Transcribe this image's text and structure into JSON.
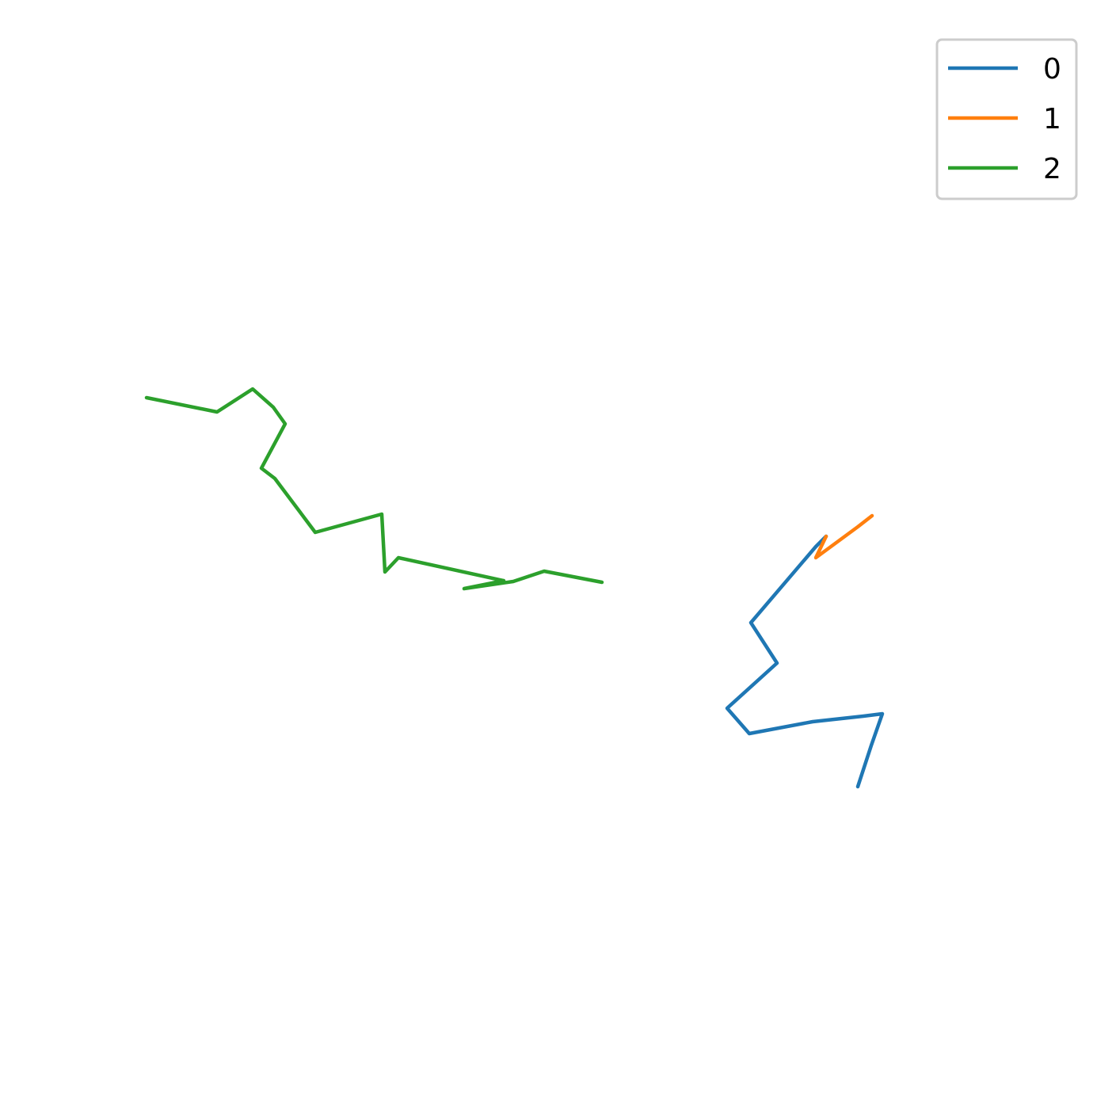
{
  "chart_data": {
    "type": "line",
    "title": "",
    "xlabel": "",
    "ylabel": "",
    "axes_visible": false,
    "grid": false,
    "legend": {
      "position": "top-right",
      "entries": [
        "0",
        "1",
        "2"
      ]
    },
    "series": [
      {
        "name": "0",
        "color": "#1f77b4",
        "points": [
          [
            1043,
            677
          ],
          [
            1030,
            690
          ],
          [
            948,
            786
          ],
          [
            981,
            837
          ],
          [
            918,
            894
          ],
          [
            946,
            926
          ],
          [
            1026,
            911
          ],
          [
            1090,
            904
          ],
          [
            1114,
            901
          ],
          [
            1100,
            941
          ],
          [
            1083,
            993
          ]
        ]
      },
      {
        "name": "1",
        "color": "#ff7f0e",
        "points": [
          [
            1101,
            651
          ],
          [
            1083,
            665
          ],
          [
            1030,
            704
          ],
          [
            1043,
            677
          ]
        ]
      },
      {
        "name": "2",
        "color": "#2ca02c",
        "points": [
          [
            185,
            502
          ],
          [
            274,
            520
          ],
          [
            319,
            491
          ],
          [
            345,
            514
          ],
          [
            360,
            535
          ],
          [
            330,
            591
          ],
          [
            347,
            604
          ],
          [
            398,
            672
          ],
          [
            482,
            649
          ],
          [
            486,
            722
          ],
          [
            503,
            704
          ],
          [
            636,
            733
          ],
          [
            586,
            743
          ],
          [
            648,
            734
          ],
          [
            687,
            721
          ],
          [
            760,
            735
          ]
        ]
      }
    ]
  }
}
